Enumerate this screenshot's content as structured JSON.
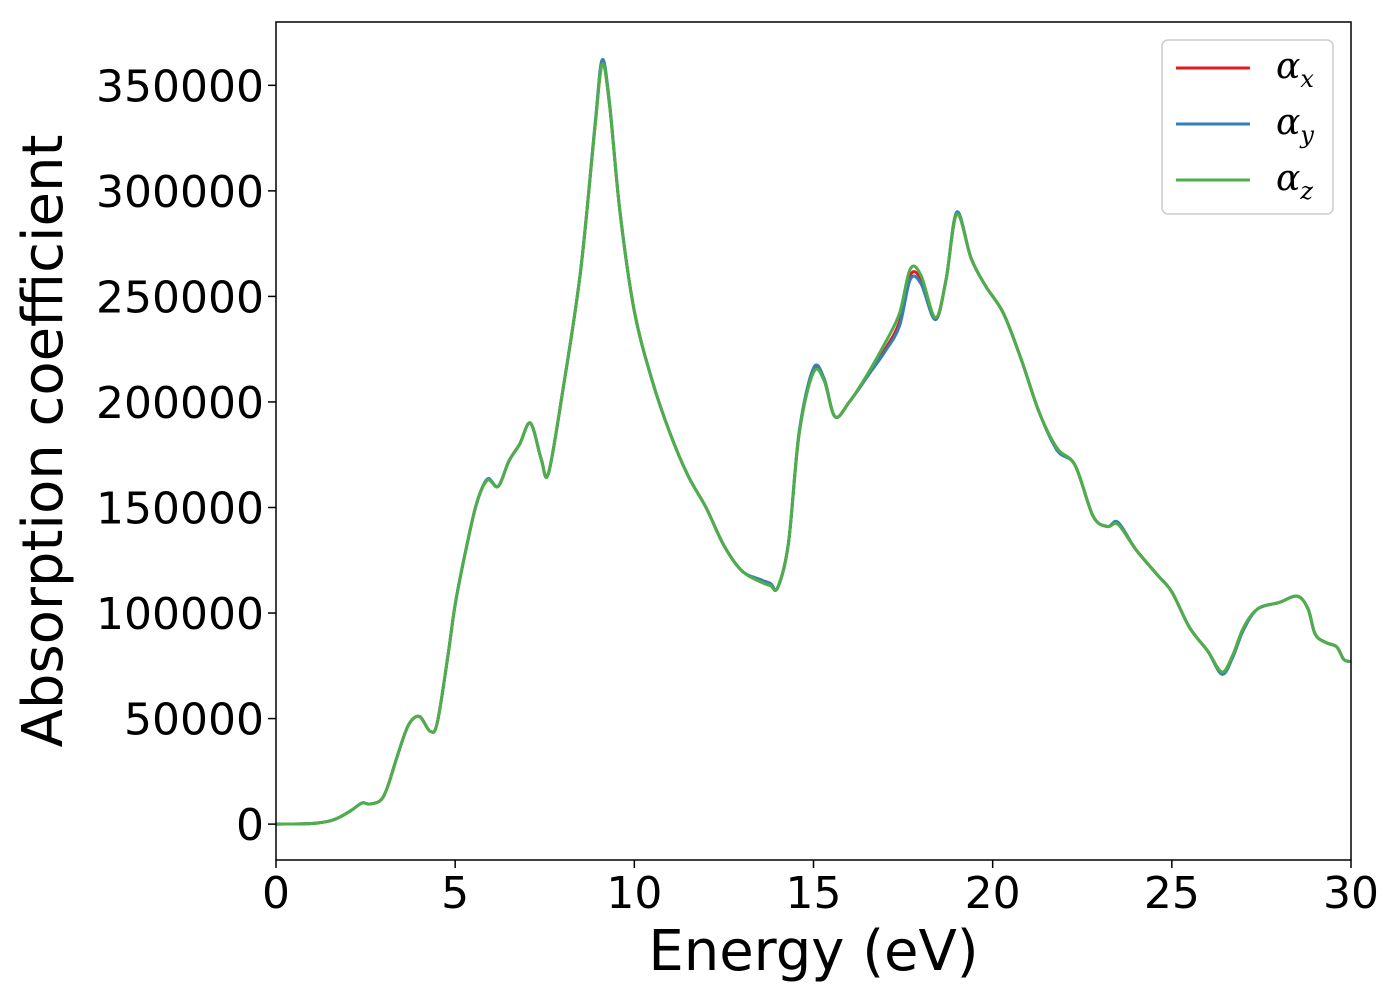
{
  "chart_data": {
    "type": "line",
    "xlabel": "Energy (eV)",
    "ylabel": "Absorption coefficient",
    "xlim": [
      0,
      30
    ],
    "ylim": [
      -17000,
      380000
    ],
    "xticks": [
      0,
      5,
      10,
      15,
      20,
      25,
      30
    ],
    "xtick_labels": [
      "0",
      "5",
      "10",
      "15",
      "20",
      "25",
      "30"
    ],
    "yticks": [
      0,
      50000,
      100000,
      150000,
      200000,
      250000,
      300000,
      350000
    ],
    "ytick_labels": [
      "0",
      "50000",
      "100000",
      "150000",
      "200000",
      "250000",
      "300000",
      "350000"
    ],
    "grid": false,
    "legend_position": "top-right",
    "x": [
      0,
      1,
      1.5,
      1.8,
      2.1,
      2.4,
      2.6,
      2.9,
      3.1,
      3.4,
      3.7,
      4.0,
      4.3,
      4.5,
      4.8,
      5.0,
      5.3,
      5.6,
      5.9,
      6.2,
      6.5,
      6.8,
      7.1,
      7.4,
      7.6,
      8.0,
      8.5,
      8.9,
      9.1,
      9.3,
      9.6,
      10.0,
      10.5,
      11.0,
      11.5,
      12.0,
      12.5,
      13.0,
      13.5,
      13.8,
      14.0,
      14.3,
      14.6,
      15.0,
      15.3,
      15.6,
      16.0,
      16.5,
      17.0,
      17.4,
      17.7,
      18.0,
      18.4,
      18.7,
      19.0,
      19.4,
      19.8,
      20.3,
      20.8,
      21.3,
      21.8,
      22.3,
      22.8,
      23.2,
      23.5,
      24.0,
      24.6,
      25.0,
      25.5,
      26.0,
      26.4,
      26.7,
      27.0,
      27.4,
      28.0,
      28.5,
      28.8,
      29.0,
      29.3,
      29.6,
      29.8,
      30.0
    ],
    "series": [
      {
        "name": "α_x",
        "color": "#e41a1c",
        "values": [
          0,
          300,
          1500,
          3500,
          6500,
          10000,
          9500,
          11000,
          17000,
          33000,
          47000,
          51000,
          44000,
          48000,
          80000,
          104000,
          130000,
          152000,
          163000,
          160000,
          172000,
          180000,
          190000,
          173000,
          166000,
          205000,
          262000,
          330000,
          360000,
          342000,
          290000,
          243000,
          210000,
          185000,
          165000,
          150000,
          132000,
          120000,
          115000,
          113000,
          112000,
          133000,
          185000,
          215000,
          210000,
          193000,
          200000,
          212000,
          225000,
          238000,
          260000,
          258000,
          239000,
          258000,
          289000,
          268000,
          255000,
          242000,
          220000,
          195000,
          178000,
          170000,
          146000,
          141000,
          142000,
          130000,
          118000,
          110000,
          93000,
          82000,
          72000,
          80000,
          93000,
          102000,
          105000,
          108000,
          102000,
          90000,
          86000,
          84000,
          78000,
          77000
        ]
      },
      {
        "name": "α_y",
        "color": "#377eb8",
        "values": [
          0,
          300,
          1500,
          3500,
          6500,
          10000,
          9500,
          11000,
          17000,
          33000,
          47000,
          51000,
          44000,
          48000,
          80000,
          104000,
          130000,
          152000,
          163500,
          160000,
          172000,
          180000,
          190000,
          173000,
          166000,
          205000,
          262000,
          331000,
          362000,
          343000,
          290000,
          243000,
          210000,
          185000,
          165000,
          150000,
          132000,
          120000,
          116000,
          114000,
          112000,
          133000,
          186000,
          216000,
          211000,
          193000,
          200000,
          212000,
          224000,
          236000,
          258000,
          256000,
          239000,
          258000,
          290000,
          268000,
          255000,
          242000,
          220000,
          195000,
          177000,
          170000,
          146000,
          141000,
          143000,
          130000,
          118000,
          110000,
          93000,
          82000,
          71000,
          79000,
          92000,
          102000,
          105000,
          108000,
          102000,
          90000,
          86000,
          84000,
          78000,
          77000
        ]
      },
      {
        "name": "α_z",
        "color": "#4daf4a",
        "values": [
          0,
          300,
          1500,
          3500,
          6500,
          10000,
          9500,
          11000,
          17000,
          33000,
          47000,
          51000,
          44000,
          48000,
          80000,
          104000,
          130000,
          152000,
          163000,
          160000,
          172000,
          180000,
          190000,
          173000,
          166000,
          205000,
          262000,
          330000,
          360000,
          342000,
          290000,
          243000,
          210000,
          185000,
          165000,
          150000,
          132000,
          120000,
          115000,
          113000,
          112000,
          133000,
          185000,
          214000,
          210000,
          193000,
          200000,
          213000,
          228000,
          242000,
          263000,
          260000,
          240000,
          258000,
          289000,
          268000,
          255000,
          242000,
          220000,
          195000,
          178000,
          170000,
          146000,
          141000,
          142000,
          130000,
          118000,
          110000,
          93000,
          82000,
          72000,
          80000,
          93000,
          102000,
          105000,
          108000,
          102000,
          90000,
          86000,
          84000,
          78000,
          77000
        ]
      }
    ],
    "legend": [
      {
        "base": "α",
        "sub": "x",
        "color": "#e41a1c"
      },
      {
        "base": "α",
        "sub": "y",
        "color": "#377eb8"
      },
      {
        "base": "α",
        "sub": "z",
        "color": "#4daf4a"
      }
    ]
  }
}
